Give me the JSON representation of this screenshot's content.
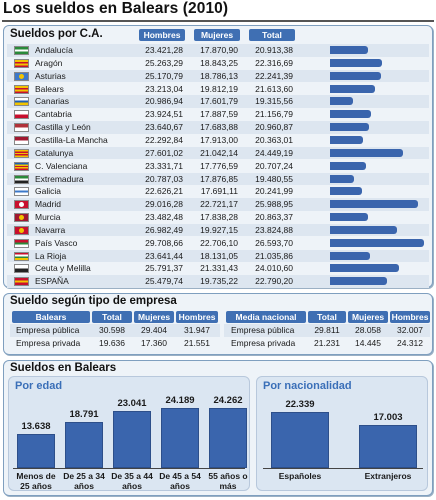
{
  "title": "Los sueldos en Balears (2010)",
  "chart_data": [
    {
      "type": "table",
      "title": "Sueldos por C.A.",
      "columns": [
        "Hombres",
        "Mujeres",
        "Total"
      ],
      "rows": [
        {
          "name": "Andalucía",
          "hombres": "23.421,28",
          "mujeres": "17.870,90",
          "total": "20.913,38",
          "total_value": 20913.38
        },
        {
          "name": "Aragón",
          "hombres": "25.263,29",
          "mujeres": "18.843,25",
          "total": "22.316,69",
          "total_value": 22316.69
        },
        {
          "name": "Asturias",
          "hombres": "25.170,79",
          "mujeres": "18.786,13",
          "total": "22.241,39",
          "total_value": 22241.39
        },
        {
          "name": "Balears",
          "hombres": "23.213,04",
          "mujeres": "19.812,19",
          "total": "21.613,60",
          "total_value": 21613.6
        },
        {
          "name": "Canarias",
          "hombres": "20.986,94",
          "mujeres": "17.601,79",
          "total": "19.315,56",
          "total_value": 19315.56
        },
        {
          "name": "Cantabria",
          "hombres": "23.924,51",
          "mujeres": "17.887,59",
          "total": "21.156,79",
          "total_value": 21156.79
        },
        {
          "name": "Castilla y León",
          "hombres": "23.640,67",
          "mujeres": "17.683,88",
          "total": "20.960,87",
          "total_value": 20960.87
        },
        {
          "name": "Castilla-La Mancha",
          "hombres": "22.292,84",
          "mujeres": "17.913,00",
          "total": "20.363,01",
          "total_value": 20363.01
        },
        {
          "name": "Catalunya",
          "hombres": "27.601,02",
          "mujeres": "21.042,14",
          "total": "24.449,19",
          "total_value": 24449.19
        },
        {
          "name": "C. Valenciana",
          "hombres": "23.331,71",
          "mujeres": "17.776,59",
          "total": "20.707,24",
          "total_value": 20707.24
        },
        {
          "name": "Extremadura",
          "hombres": "20.787,03",
          "mujeres": "17.876,85",
          "total": "19.480,55",
          "total_value": 19480.55
        },
        {
          "name": "Galicia",
          "hombres": "22.626,21",
          "mujeres": "17.691,11",
          "total": "20.241,99",
          "total_value": 20241.99
        },
        {
          "name": "Madrid",
          "hombres": "29.016,28",
          "mujeres": "22.721,17",
          "total": "25.988,95",
          "total_value": 25988.95
        },
        {
          "name": "Murcia",
          "hombres": "23.482,48",
          "mujeres": "17.838,28",
          "total": "20.863,37",
          "total_value": 20863.37
        },
        {
          "name": "Navarra",
          "hombres": "26.982,49",
          "mujeres": "19.927,15",
          "total": "23.824,88",
          "total_value": 23824.88
        },
        {
          "name": "País Vasco",
          "hombres": "29.708,66",
          "mujeres": "22.706,10",
          "total": "26.593,70",
          "total_value": 26593.7
        },
        {
          "name": "La Rioja",
          "hombres": "23.641,44",
          "mujeres": "18.131,05",
          "total": "21.035,86",
          "total_value": 21035.86
        },
        {
          "name": "Ceuta y Melilla",
          "hombres": "25.791,37",
          "mujeres": "21.331,43",
          "total": "24.010,60",
          "total_value": 24010.6
        },
        {
          "name": "ESPAÑA",
          "hombres": "25.479,74",
          "mujeres": "19.735,22",
          "total": "22.790,20",
          "total_value": 22790.2
        }
      ]
    },
    {
      "type": "table",
      "title": "Sueldo según tipo de empresa",
      "tables": [
        {
          "header": "Balears",
          "columns": [
            "Total",
            "Mujeres",
            "Hombres"
          ],
          "rows": [
            {
              "name": "Empresa pública",
              "values": [
                "30.598",
                "29.404",
                "31.947"
              ]
            },
            {
              "name": "Empresa privada",
              "values": [
                "19.636",
                "17.360",
                "21.551"
              ]
            }
          ]
        },
        {
          "header": "Media nacional",
          "columns": [
            "Total",
            "Mujeres",
            "Hombres"
          ],
          "rows": [
            {
              "name": "Empresa pública",
              "values": [
                "29.811",
                "28.058",
                "32.007"
              ]
            },
            {
              "name": "Empresa privada",
              "values": [
                "21.231",
                "14.445",
                "24.312"
              ]
            }
          ]
        }
      ]
    },
    {
      "type": "bar",
      "title": "Sueldos en Balears",
      "subtitle": "Por edad",
      "categories": [
        "Menos de 25 años",
        "De 25 a 34 años",
        "De 35 a 44 años",
        "De 45 a 54 años",
        "55 años o más"
      ],
      "labels": [
        "13.638",
        "18.791",
        "23.041",
        "24.189",
        "24.262"
      ],
      "values": [
        13638,
        18791,
        23041,
        24189,
        24262
      ]
    },
    {
      "type": "bar",
      "subtitle": "Por nacionalidad",
      "categories": [
        "Españoles",
        "Extranjeros"
      ],
      "labels": [
        "22.339",
        "17.003"
      ],
      "values": [
        22339,
        17003
      ]
    }
  ],
  "flags": [
    {
      "stripes": [
        "#2a8a3a",
        "#ffffff",
        "#2a8a3a"
      ]
    },
    {
      "stripes": [
        "#f2c400",
        "#c8102e",
        "#f2c400",
        "#c8102e"
      ]
    },
    {
      "stripes": [
        "#3c78c8"
      ],
      "mark": "#f2c400"
    },
    {
      "stripes": [
        "#f2c400",
        "#c8102e",
        "#f2c400",
        "#c8102e"
      ]
    },
    {
      "stripes": [
        "#ffffff",
        "#1f5fb5",
        "#f2c400"
      ]
    },
    {
      "stripes": [
        "#ffffff",
        "#c8102e"
      ]
    },
    {
      "stripes": [
        "#b0323a",
        "#ffffff"
      ]
    },
    {
      "stripes": [
        "#a01830",
        "#ffffff"
      ]
    },
    {
      "stripes": [
        "#f2c400",
        "#c8102e",
        "#f2c400",
        "#c8102e",
        "#f2c400"
      ]
    },
    {
      "stripes": [
        "#1f5fb5",
        "#f2c400",
        "#c8102e",
        "#f2c400",
        "#c8102e"
      ]
    },
    {
      "stripes": [
        "#2a8a3a",
        "#ffffff",
        "#222222"
      ]
    },
    {
      "stripes": [
        "#ffffff",
        "#3c78c8",
        "#ffffff"
      ]
    },
    {
      "stripes": [
        "#c8102e"
      ],
      "mark": "#ffffff"
    },
    {
      "stripes": [
        "#a01830"
      ],
      "mark": "#f2c400"
    },
    {
      "stripes": [
        "#c8102e"
      ],
      "mark": "#f2c400"
    },
    {
      "stripes": [
        "#c8102e",
        "#2a8a3a",
        "#ffffff"
      ]
    },
    {
      "stripes": [
        "#c8102e",
        "#ffffff",
        "#2a8a3a",
        "#f2c400"
      ]
    },
    {
      "stripes": [
        "#ffffff",
        "#222222"
      ]
    },
    {
      "stripes": [
        "#c8102e",
        "#f2c400",
        "#c8102e"
      ]
    }
  ]
}
